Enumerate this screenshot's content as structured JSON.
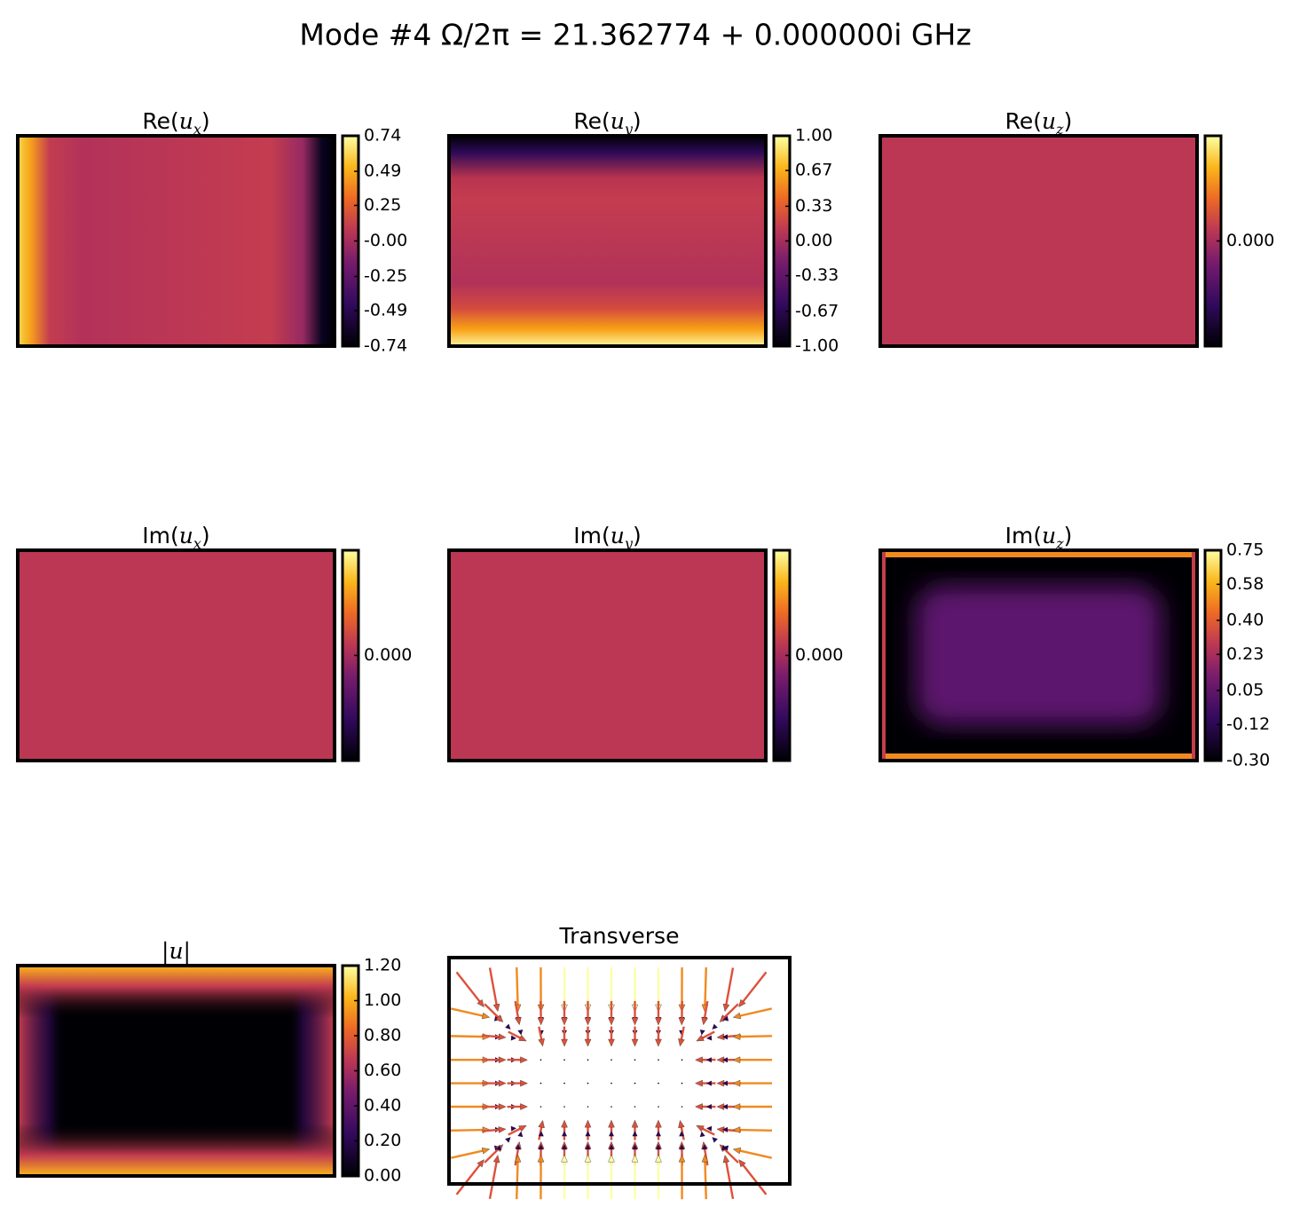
{
  "chart_data": {
    "type": "heatmap-grid",
    "colormap": "inferno",
    "title": "Mode #4    Ω/2π = 21.362774 + 0.000000i GHz",
    "panels": [
      {
        "title": [
          "Re(",
          "u",
          "x",
          ")"
        ],
        "clim": [
          -0.74,
          0.74
        ],
        "ticks": [
          0.74,
          0.49,
          0.25,
          {
            "value": 0,
            "label": "-0.00"
          },
          -0.25,
          -0.49,
          -0.74
        ]
      },
      {
        "title": [
          "Re(",
          "u",
          "y",
          ")"
        ],
        "clim": [
          -1,
          1
        ],
        "ticks": [
          {
            "value": 1,
            "label": "1.00"
          },
          0.67,
          0.33,
          {
            "value": 0,
            "label": "0.00"
          },
          -0.33,
          -0.67,
          {
            "value": -1,
            "label": "-1.00"
          }
        ]
      },
      {
        "title": [
          "Re(",
          "u",
          "z",
          ")"
        ],
        "ticks": [
          {
            "value": 0,
            "label": "0.000"
          }
        ]
      },
      {
        "title": [
          "Im(",
          "u",
          "x",
          ")"
        ],
        "ticks": [
          {
            "value": 0,
            "label": "0.000"
          }
        ]
      },
      {
        "title": [
          "Im(",
          "u",
          "y",
          ")"
        ],
        "ticks": [
          {
            "value": 0,
            "label": "0.000"
          }
        ]
      },
      {
        "title": [
          "Im(",
          "u",
          "z",
          ")"
        ],
        "clim": [
          -0.3,
          0.75
        ],
        "ticks": [
          0.75,
          0.58,
          {
            "value": 0.4,
            "label": "0.40"
          },
          0.23,
          0.05,
          -0.12,
          {
            "value": -0.3,
            "label": "-0.30"
          }
        ]
      },
      {
        "title": [
          "|u|"
        ],
        "clim": [
          0,
          1.2
        ],
        "ticks": [
          {
            "value": 1.2,
            "label": "1.20"
          },
          {
            "value": 1,
            "label": "1.00"
          },
          {
            "value": 0.8,
            "label": "0.80"
          },
          {
            "value": 0.6,
            "label": "0.60"
          },
          {
            "value": 0.4,
            "label": "0.40"
          },
          {
            "value": 0.2,
            "label": "0.20"
          },
          {
            "value": 0,
            "label": "0.00"
          }
        ]
      }
    ],
    "quiver_title": "Transverse"
  }
}
